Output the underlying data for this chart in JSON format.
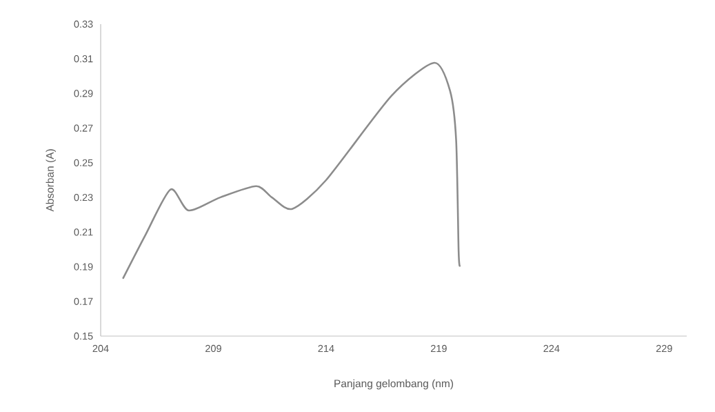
{
  "chart_data": {
    "type": "line",
    "xlabel": "Panjang gelombang (nm)",
    "ylabel": "Absorban (A)",
    "x": [
      205.0,
      206.0,
      207.1,
      207.9,
      209.3,
      210.9,
      211.6,
      212.5,
      214.0,
      216.9,
      218.8,
      219.5,
      219.77,
      219.88,
      219.93
    ],
    "series": [
      {
        "color": "#8c8c8c",
        "values": [
          0.1835,
          0.2087,
          0.2346,
          0.2225,
          0.23,
          0.2365,
          0.23,
          0.2234,
          0.24,
          0.2886,
          0.3077,
          0.2915,
          0.263,
          0.199,
          0.1905
        ]
      }
    ],
    "xlim": [
      204,
      230
    ],
    "xticks": [
      204,
      209,
      214,
      219,
      224,
      229
    ],
    "ylim": [
      0.15,
      0.33
    ],
    "yticks": [
      0.15,
      0.17,
      0.19,
      0.21,
      0.23,
      0.25,
      0.27,
      0.29,
      0.31,
      0.33
    ],
    "grid": false,
    "marker": "none",
    "line_style": "solid"
  }
}
